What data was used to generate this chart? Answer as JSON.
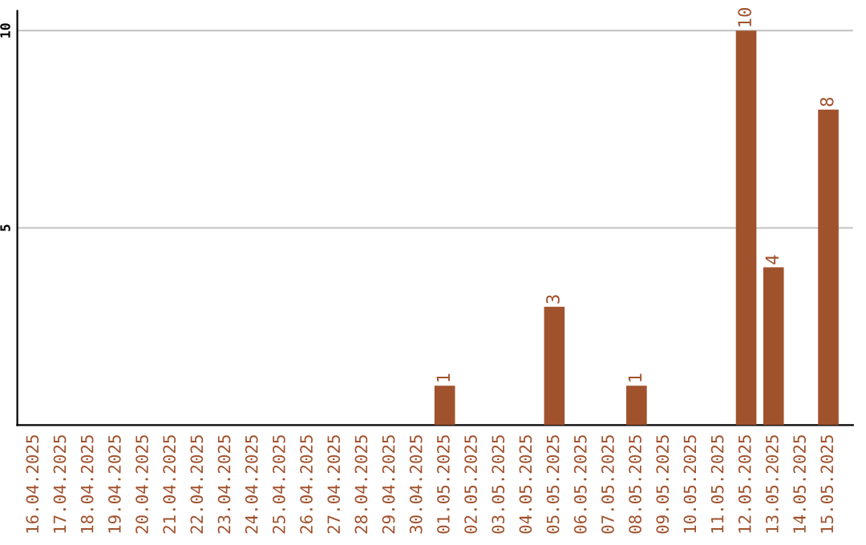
{
  "chart_data": {
    "type": "bar",
    "categories": [
      "16.04.2025",
      "17.04.2025",
      "18.04.2025",
      "19.04.2025",
      "20.04.2025",
      "21.04.2025",
      "22.04.2025",
      "23.04.2025",
      "24.04.2025",
      "25.04.2025",
      "26.04.2025",
      "27.04.2025",
      "28.04.2025",
      "29.04.2025",
      "30.04.2025",
      "01.05.2025",
      "02.05.2025",
      "03.05.2025",
      "04.05.2025",
      "05.05.2025",
      "06.05.2025",
      "07.05.2025",
      "08.05.2025",
      "09.05.2025",
      "10.05.2025",
      "11.05.2025",
      "12.05.2025",
      "13.05.2025",
      "14.05.2025",
      "15.05.2025"
    ],
    "values": [
      0,
      0,
      0,
      0,
      0,
      0,
      0,
      0,
      0,
      0,
      0,
      0,
      0,
      0,
      0,
      1,
      0,
      0,
      0,
      3,
      0,
      0,
      1,
      0,
      0,
      0,
      10,
      4,
      0,
      8
    ],
    "value_labels": [
      null,
      null,
      null,
      null,
      null,
      null,
      null,
      null,
      null,
      null,
      null,
      null,
      null,
      null,
      null,
      "1",
      null,
      null,
      null,
      "3",
      null,
      null,
      "1",
      null,
      null,
      null,
      "10",
      "4",
      null,
      "8"
    ],
    "color": "#a0522d",
    "ylim": [
      0,
      10.5
    ],
    "yticks": [
      5,
      10
    ],
    "grid": "y"
  }
}
